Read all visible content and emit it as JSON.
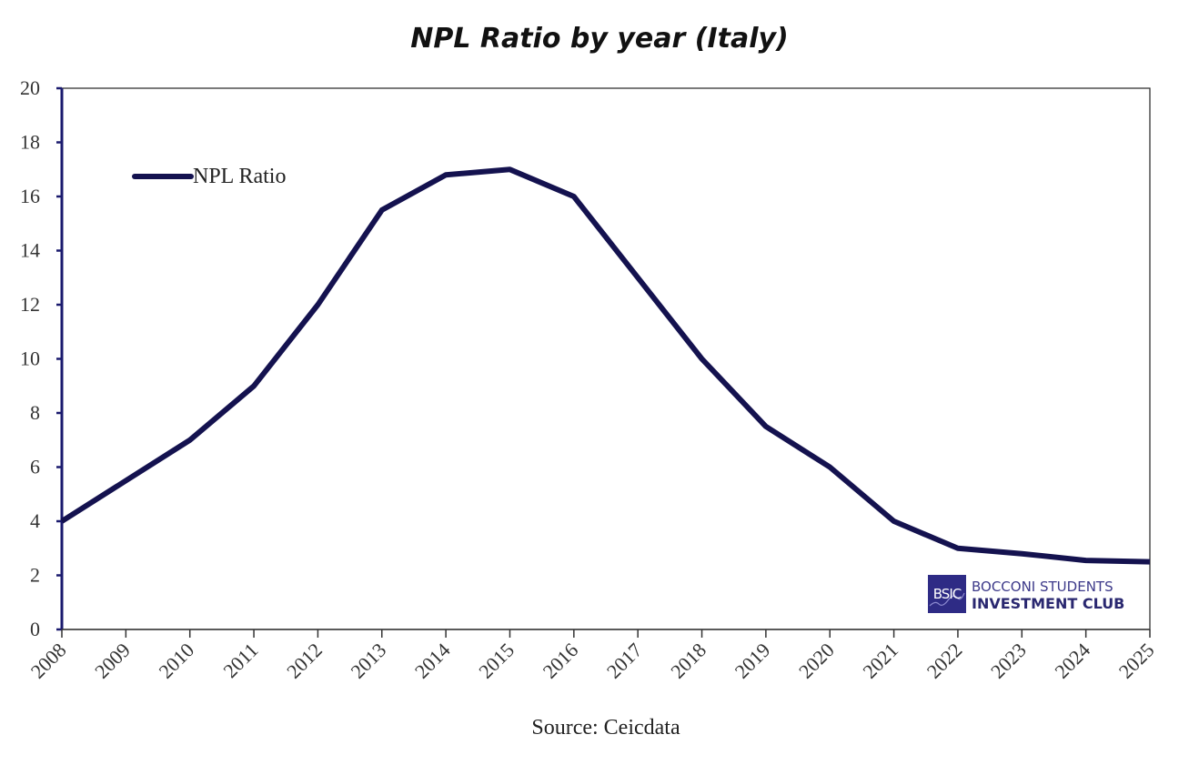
{
  "chart_data": {
    "type": "line",
    "title": "NPL Ratio by year (Italy)",
    "xlabel": "",
    "ylabel": "",
    "categories": [
      "2008",
      "2009",
      "2010",
      "2011",
      "2012",
      "2013",
      "2014",
      "2015",
      "2016",
      "2017",
      "2018",
      "2019",
      "2020",
      "2021",
      "2022",
      "2023",
      "2024",
      "2025"
    ],
    "series": [
      {
        "name": "NPL Ratio",
        "color": "#14124f",
        "values": [
          4.0,
          5.5,
          7.0,
          9.0,
          12.0,
          15.5,
          16.8,
          17.0,
          16.0,
          13.0,
          10.0,
          7.5,
          6.0,
          4.0,
          3.0,
          2.8,
          2.55,
          2.5
        ]
      }
    ],
    "ylim": [
      0,
      20
    ],
    "yticks": [
      0,
      2,
      4,
      6,
      8,
      10,
      12,
      14,
      16,
      18,
      20
    ],
    "grid": false,
    "legend": {
      "placement": "top-left",
      "entries": [
        "NPL Ratio"
      ]
    },
    "source": "Source: Ceicdata",
    "axis_color": "#1a1a6e"
  },
  "branding": {
    "badge": "BSIC",
    "line1": "BOCCONI STUDENTS",
    "line2": "INVESTMENT CLUB",
    "color": "#2e2b85"
  }
}
